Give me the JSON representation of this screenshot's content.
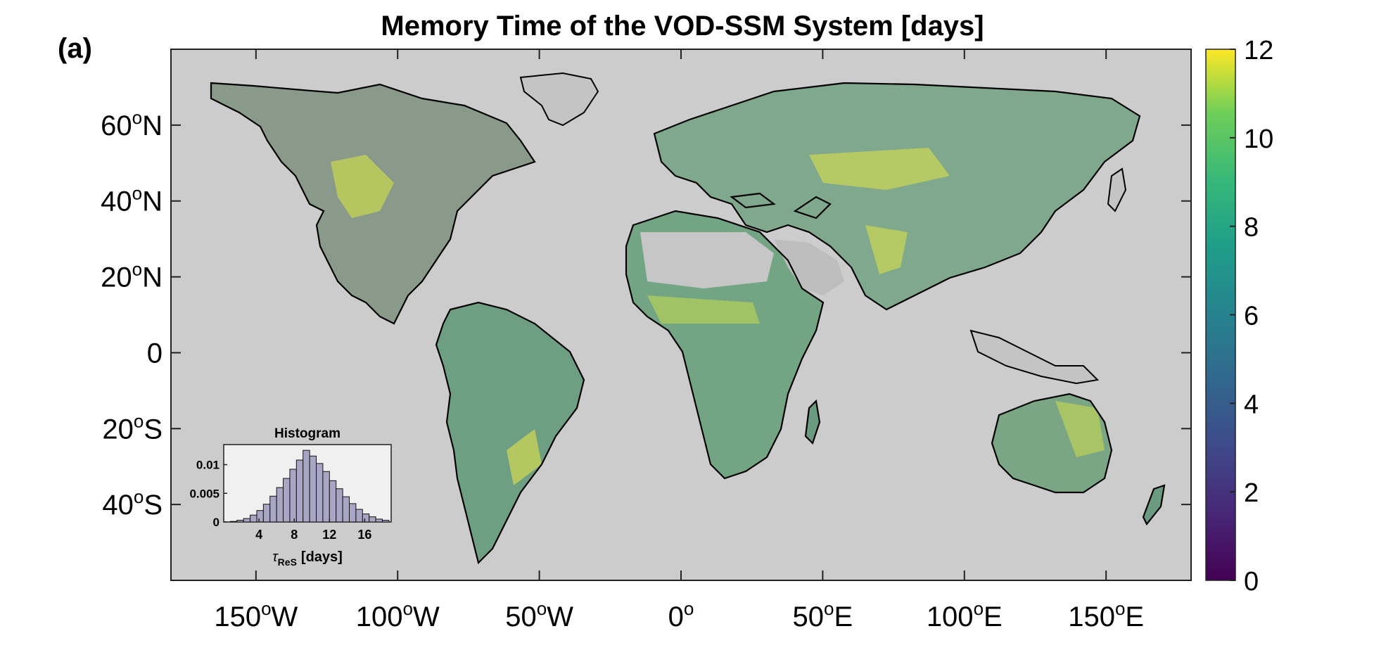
{
  "figure": {
    "panel_label": "(a)",
    "title": "Memory Time of the VOD-SSM System [days]"
  },
  "map": {
    "projection": "equirectangular",
    "lon_range": [
      -180,
      180
    ],
    "lat_range": [
      -60,
      80
    ],
    "background_color": "#cccccc",
    "coastline_color": "#000000",
    "lat_ticks": [
      {
        "value": 60,
        "label": "60",
        "suffix": "N"
      },
      {
        "value": 40,
        "label": "40",
        "suffix": "N"
      },
      {
        "value": 20,
        "label": "20",
        "suffix": "N"
      },
      {
        "value": 0,
        "label": "0",
        "suffix": ""
      },
      {
        "value": -20,
        "label": "20",
        "suffix": "S"
      },
      {
        "value": -40,
        "label": "40",
        "suffix": "S"
      }
    ],
    "lon_ticks": [
      {
        "value": -150,
        "label": "150",
        "suffix": "W"
      },
      {
        "value": -100,
        "label": "100",
        "suffix": "W"
      },
      {
        "value": -50,
        "label": "50",
        "suffix": "W"
      },
      {
        "value": 0,
        "label": "0",
        "suffix": ""
      },
      {
        "value": 50,
        "label": "50",
        "suffix": "E"
      },
      {
        "value": 100,
        "label": "100",
        "suffix": "E"
      },
      {
        "value": 150,
        "label": "150",
        "suffix": "E"
      }
    ]
  },
  "colorbar": {
    "colormap": "viridis",
    "min": 0,
    "max": 12,
    "ticks": [
      "0",
      "2",
      "4",
      "6",
      "8",
      "10",
      "12"
    ]
  },
  "chart_data": {
    "type": "bar",
    "title": "Histogram",
    "xlabel_symbol": "τ",
    "xlabel_sub": "ReS",
    "xlabel_unit": "[days]",
    "ylabel": "",
    "xlim": [
      0,
      19
    ],
    "ylim": [
      0,
      0.0135
    ],
    "xticks": [
      4,
      8,
      12,
      16
    ],
    "yticks": [
      {
        "value": 0,
        "label": "0"
      },
      {
        "value": 0.005,
        "label": "0.005"
      },
      {
        "value": 0.01,
        "label": "0.01"
      }
    ],
    "bin_width": 0.75,
    "bin_starts": [
      0.75,
      1.5,
      2.25,
      3.0,
      3.75,
      4.5,
      5.25,
      6.0,
      6.75,
      7.5,
      8.25,
      9.0,
      9.75,
      10.5,
      11.25,
      12.0,
      12.75,
      13.5,
      14.25,
      15.0,
      15.75,
      16.5,
      17.25,
      18.0
    ],
    "values": [
      0.0001,
      0.0003,
      0.0006,
      0.0012,
      0.002,
      0.0031,
      0.0045,
      0.006,
      0.0076,
      0.0092,
      0.0108,
      0.0125,
      0.0115,
      0.0102,
      0.0088,
      0.0072,
      0.0058,
      0.0044,
      0.0032,
      0.0022,
      0.0014,
      0.0009,
      0.0005,
      0.0003
    ],
    "bar_color": "#a9a5c4",
    "background_color": "#f0f0f0",
    "grid": false
  }
}
